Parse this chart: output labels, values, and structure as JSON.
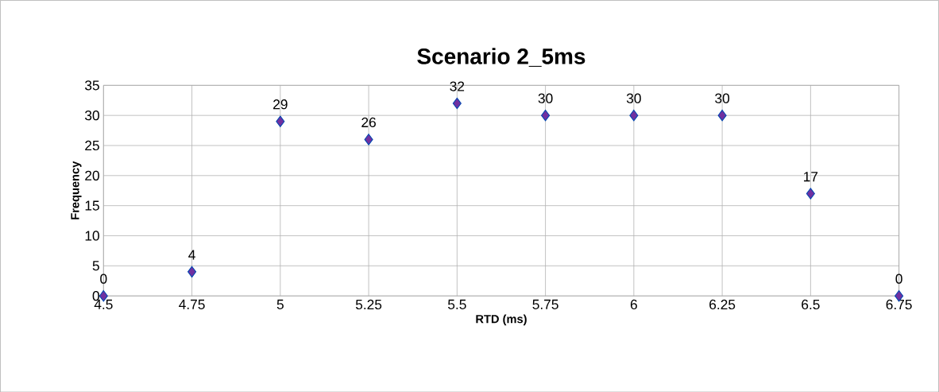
{
  "chart_data": {
    "type": "scatter",
    "title": "Scenario 2_5ms",
    "xlabel": "RTD (ms)",
    "ylabel": "Frequency",
    "x": [
      4.5,
      4.75,
      5,
      5.25,
      5.5,
      5.75,
      6,
      6.25,
      6.5,
      6.75
    ],
    "values": [
      0,
      4,
      29,
      26,
      32,
      30,
      30,
      30,
      17,
      0
    ],
    "color": "#7030a0",
    "marker": "diamond",
    "data_labels": true,
    "grid": true,
    "xlim": [
      4.5,
      6.75
    ],
    "xticks": [
      4.5,
      4.75,
      5,
      5.25,
      5.5,
      5.75,
      6,
      6.25,
      6.5,
      6.75
    ],
    "ylim": [
      0,
      35
    ],
    "yticks": [
      0,
      5,
      10,
      15,
      20,
      25,
      30,
      35
    ]
  }
}
